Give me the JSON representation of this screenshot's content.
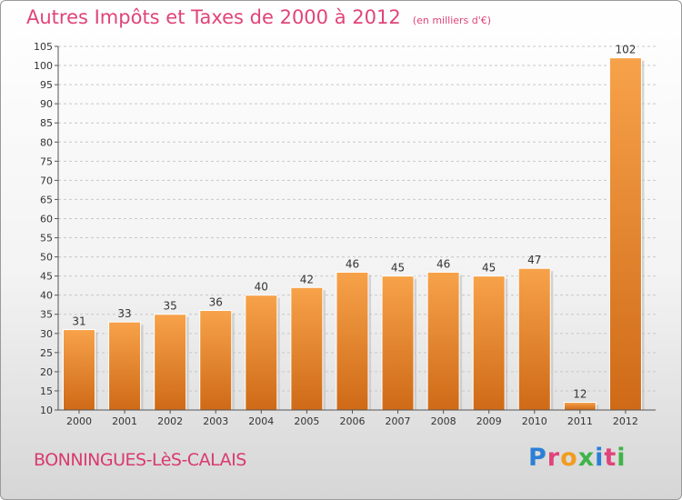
{
  "header": {
    "title": "Autres Impôts et Taxes de 2000 à 2012",
    "subtitle": "(en milliers d'€)"
  },
  "footer": {
    "commune": "BONNINGUES-LèS-CALAIS",
    "brand": "Proxiti",
    "brand_colors": [
      "#2b7fd6",
      "#e0447a",
      "#f29c1f",
      "#40b34a",
      "#2b7fd6",
      "#e0447a",
      "#40b34a"
    ]
  },
  "chart_data": {
    "type": "bar",
    "title": "Autres Impôts et Taxes de 2000 à 2012",
    "subtitle": "(en milliers d'€)",
    "categories": [
      "2000",
      "2001",
      "2002",
      "2003",
      "2004",
      "2005",
      "2006",
      "2007",
      "2008",
      "2009",
      "2010",
      "2011",
      "2012"
    ],
    "values": [
      31,
      33,
      35,
      36,
      40,
      42,
      46,
      45,
      46,
      45,
      47,
      12,
      102
    ],
    "ylim": [
      10,
      105
    ],
    "yticks": [
      10,
      15,
      20,
      25,
      30,
      35,
      40,
      45,
      50,
      55,
      60,
      65,
      70,
      75,
      80,
      85,
      90,
      95,
      100,
      105
    ],
    "grid": true,
    "bar_color": "#f0922e",
    "bar_color_dark": "#cf6a17"
  }
}
